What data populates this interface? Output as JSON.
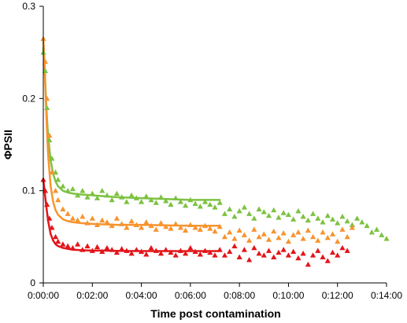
{
  "chart_data": {
    "type": "scatter",
    "title": "",
    "xlabel": "Time post contamination",
    "ylabel": "ΦPSII",
    "x_unit": "minutes",
    "xlim": [
      0,
      14
    ],
    "ylim": [
      0,
      0.3
    ],
    "x_ticks": [
      0,
      2,
      4,
      6,
      8,
      10,
      12,
      14
    ],
    "x_tick_labels": [
      "0:00:00",
      "0:02:00",
      "0:04:00",
      "0:06:00",
      "0:08:00",
      "0:10:00",
      "0:12:00",
      "0:14:00"
    ],
    "y_ticks": [
      0,
      0.1,
      0.2,
      0.3
    ],
    "y_tick_labels": [
      "0",
      "0.1",
      "0.2",
      "0.3"
    ],
    "grid": false,
    "legend": "none",
    "marker": "triangle",
    "series": [
      {
        "color": "#7dc242",
        "scatter": {
          "x": [
            0.0,
            0.08,
            0.15,
            0.25,
            0.35,
            0.5,
            0.6,
            0.8,
            1.0,
            1.2,
            1.4,
            1.6,
            1.8,
            2.0,
            2.2,
            2.4,
            2.6,
            2.8,
            3.0,
            3.2,
            3.4,
            3.6,
            3.8,
            4.0,
            4.2,
            4.4,
            4.6,
            4.8,
            5.0,
            5.2,
            5.4,
            5.6,
            5.8,
            6.0,
            6.2,
            6.4,
            6.6,
            6.8,
            7.0,
            7.2,
            7.4,
            7.6,
            7.8,
            8.0,
            8.2,
            8.4,
            8.6,
            8.8,
            9.0,
            9.2,
            9.4,
            9.6,
            9.8,
            10.0,
            10.2,
            10.4,
            10.6,
            10.8,
            11.0,
            11.2,
            11.4,
            11.6,
            11.8,
            12.0,
            12.2,
            12.4,
            12.6,
            12.8,
            13.0,
            13.2,
            13.4,
            13.6,
            13.8,
            14.0
          ],
          "y": [
            0.25,
            0.23,
            0.19,
            0.155,
            0.135,
            0.12,
            0.112,
            0.105,
            0.1,
            0.102,
            0.095,
            0.1,
            0.093,
            0.097,
            0.092,
            0.1,
            0.095,
            0.09,
            0.097,
            0.093,
            0.088,
            0.095,
            0.092,
            0.088,
            0.094,
            0.09,
            0.087,
            0.093,
            0.089,
            0.085,
            0.092,
            0.088,
            0.084,
            0.09,
            0.086,
            0.083,
            0.088,
            0.085,
            0.082,
            0.087,
            0.075,
            0.08,
            0.072,
            0.078,
            0.082,
            0.075,
            0.07,
            0.08,
            0.077,
            0.073,
            0.079,
            0.071,
            0.076,
            0.074,
            0.069,
            0.078,
            0.072,
            0.068,
            0.075,
            0.07,
            0.066,
            0.073,
            0.069,
            0.065,
            0.072,
            0.067,
            0.063,
            0.07,
            0.066,
            0.062,
            0.055,
            0.058,
            0.052,
            0.048
          ]
        },
        "fit": {
          "x": [
            0,
            0.05,
            0.1,
            0.15,
            0.2,
            0.3,
            0.4,
            0.5,
            0.6,
            0.8,
            1.0,
            1.2,
            1.5,
            2.0,
            2.5,
            3.0,
            4.0,
            5.0,
            6.0,
            7.2
          ],
          "y": [
            0.255,
            0.235,
            0.205,
            0.178,
            0.158,
            0.133,
            0.118,
            0.11,
            0.105,
            0.1,
            0.098,
            0.097,
            0.096,
            0.095,
            0.094,
            0.093,
            0.092,
            0.091,
            0.09,
            0.09
          ]
        }
      },
      {
        "color": "#f7942e",
        "scatter": {
          "x": [
            0.0,
            0.08,
            0.15,
            0.25,
            0.35,
            0.5,
            0.6,
            0.8,
            1.0,
            1.2,
            1.4,
            1.6,
            1.8,
            2.0,
            2.2,
            2.4,
            2.6,
            2.8,
            3.0,
            3.2,
            3.4,
            3.6,
            3.8,
            4.0,
            4.2,
            4.4,
            4.6,
            4.8,
            5.0,
            5.2,
            5.4,
            5.6,
            5.8,
            6.0,
            6.2,
            6.4,
            6.6,
            6.8,
            7.0,
            7.2,
            7.4,
            7.6,
            7.8,
            8.0,
            8.2,
            8.4,
            8.6,
            8.8,
            9.0,
            9.2,
            9.4,
            9.6,
            9.8,
            10.0,
            10.2,
            10.4,
            10.6,
            10.8,
            11.0,
            11.2,
            11.4,
            11.6,
            11.8,
            12.0,
            12.2,
            12.4,
            12.6
          ],
          "y": [
            0.265,
            0.24,
            0.2,
            0.16,
            0.12,
            0.1,
            0.09,
            0.08,
            0.075,
            0.07,
            0.068,
            0.072,
            0.065,
            0.07,
            0.063,
            0.068,
            0.066,
            0.062,
            0.07,
            0.064,
            0.06,
            0.067,
            0.063,
            0.06,
            0.066,
            0.062,
            0.058,
            0.065,
            0.061,
            0.059,
            0.064,
            0.06,
            0.057,
            0.063,
            0.06,
            0.058,
            0.062,
            0.059,
            0.056,
            0.061,
            0.05,
            0.055,
            0.048,
            0.057,
            0.052,
            0.046,
            0.058,
            0.05,
            0.053,
            0.047,
            0.056,
            0.049,
            0.054,
            0.045,
            0.052,
            0.055,
            0.048,
            0.057,
            0.05,
            0.046,
            0.055,
            0.049,
            0.053,
            0.045,
            0.058,
            0.05,
            0.06
          ]
        },
        "fit": {
          "x": [
            0,
            0.05,
            0.1,
            0.15,
            0.2,
            0.3,
            0.4,
            0.5,
            0.6,
            0.8,
            1.0,
            1.2,
            1.5,
            2.0,
            2.5,
            3.0,
            4.0,
            5.0,
            6.0,
            7.2
          ],
          "y": [
            0.265,
            0.238,
            0.2,
            0.165,
            0.138,
            0.105,
            0.088,
            0.079,
            0.074,
            0.069,
            0.067,
            0.066,
            0.065,
            0.064,
            0.0635,
            0.063,
            0.063,
            0.0625,
            0.062,
            0.062
          ]
        }
      },
      {
        "color": "#e3151a",
        "scatter": {
          "x": [
            0.0,
            0.08,
            0.15,
            0.25,
            0.35,
            0.5,
            0.6,
            0.8,
            1.0,
            1.2,
            1.4,
            1.6,
            1.8,
            2.0,
            2.2,
            2.4,
            2.6,
            2.8,
            3.0,
            3.2,
            3.4,
            3.6,
            3.8,
            4.0,
            4.2,
            4.4,
            4.6,
            4.8,
            5.0,
            5.2,
            5.4,
            5.6,
            5.8,
            6.0,
            6.2,
            6.4,
            6.6,
            6.8,
            7.0,
            7.2,
            7.4,
            7.6,
            7.8,
            8.0,
            8.2,
            8.4,
            8.6,
            8.8,
            9.0,
            9.2,
            9.4,
            9.6,
            9.8,
            10.0,
            10.2,
            10.4,
            10.6,
            10.8,
            11.0,
            11.2,
            11.4,
            11.6,
            11.8,
            12.0,
            12.2,
            12.4
          ],
          "y": [
            0.112,
            0.1,
            0.085,
            0.07,
            0.06,
            0.05,
            0.045,
            0.042,
            0.04,
            0.038,
            0.042,
            0.036,
            0.04,
            0.035,
            0.039,
            0.034,
            0.038,
            0.036,
            0.033,
            0.037,
            0.035,
            0.032,
            0.036,
            0.034,
            0.031,
            0.038,
            0.035,
            0.032,
            0.036,
            0.033,
            0.03,
            0.035,
            0.032,
            0.038,
            0.034,
            0.031,
            0.035,
            0.033,
            0.03,
            0.036,
            0.03,
            0.034,
            0.04,
            0.028,
            0.036,
            0.025,
            0.038,
            0.032,
            0.03,
            0.035,
            0.028,
            0.033,
            0.036,
            0.03,
            0.034,
            0.027,
            0.032,
            0.02,
            0.03,
            0.035,
            0.028,
            0.024,
            0.033,
            0.03,
            0.038,
            0.035
          ]
        },
        "fit": {
          "x": [
            0,
            0.05,
            0.1,
            0.15,
            0.2,
            0.3,
            0.4,
            0.5,
            0.6,
            0.8,
            1.0,
            1.2,
            1.5,
            2.0,
            2.5,
            3.0,
            4.0,
            5.0,
            6.0,
            7.2
          ],
          "y": [
            0.112,
            0.1,
            0.088,
            0.077,
            0.067,
            0.053,
            0.046,
            0.042,
            0.04,
            0.038,
            0.037,
            0.036,
            0.0355,
            0.035,
            0.035,
            0.0348,
            0.0345,
            0.0345,
            0.0345,
            0.0345
          ]
        }
      }
    ]
  }
}
